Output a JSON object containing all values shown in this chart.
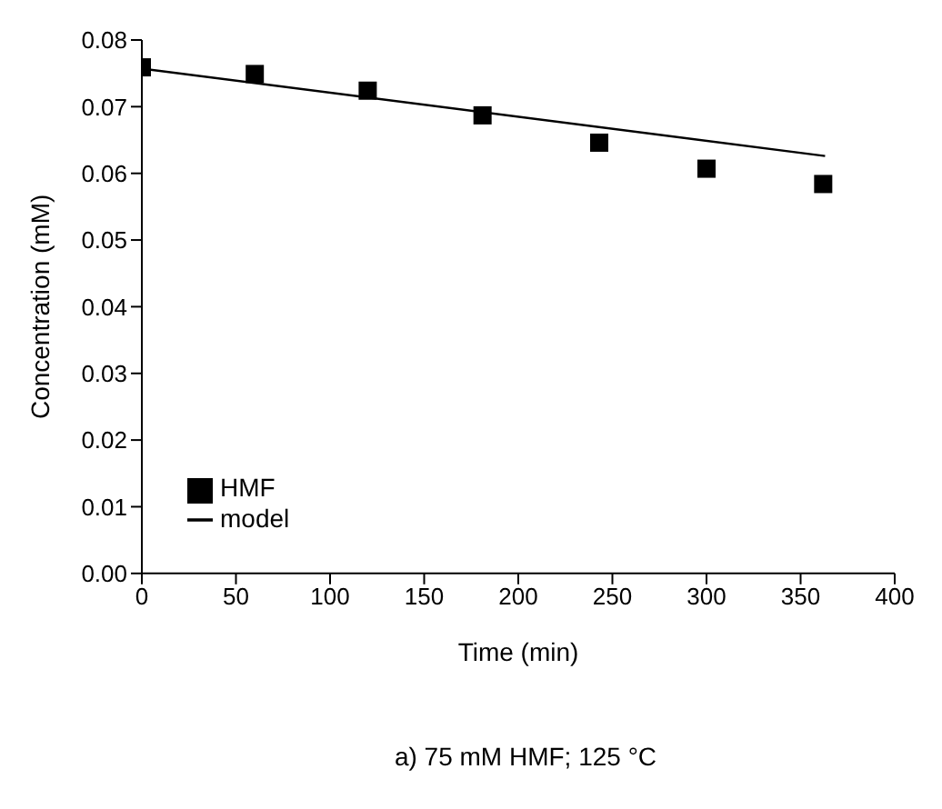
{
  "chart_data": {
    "type": "scatter",
    "xlabel": "Time (min)",
    "ylabel": "Concentration (mM)",
    "annotations": [
      "a) 75 mM HMF; 125 °C"
    ],
    "xlim": [
      0,
      400
    ],
    "xticks": [
      0,
      50,
      100,
      150,
      200,
      250,
      300,
      350,
      400
    ],
    "ylim": [
      0,
      0.08
    ],
    "yticks": [
      {
        "value": 0,
        "label": "0.00"
      },
      {
        "value": 0.01,
        "label": "0.01"
      },
      {
        "value": 0.02,
        "label": "0.02"
      },
      {
        "value": 0.03,
        "label": "0.03"
      },
      {
        "value": 0.04,
        "label": "0.04"
      },
      {
        "value": 0.05,
        "label": "0.05"
      },
      {
        "value": 0.06,
        "label": "0.06"
      },
      {
        "value": 0.07,
        "label": "0.07"
      },
      {
        "value": 0.08,
        "label": "0.08"
      }
    ],
    "grid": false,
    "legend": "bottom left",
    "series": [
      {
        "name": "HMF",
        "marker": "square",
        "color": "#000000",
        "x": [
          0,
          60,
          120,
          181,
          243,
          300,
          362
        ],
        "values": [
          0.0759,
          0.0749,
          0.0724,
          0.0687,
          0.0646,
          0.0607,
          0.0584
        ]
      },
      {
        "name": "model",
        "type": "line",
        "marker": "none",
        "color": "#000000",
        "x": [
          0,
          363
        ],
        "values": [
          0.0757,
          0.0626
        ]
      }
    ]
  }
}
